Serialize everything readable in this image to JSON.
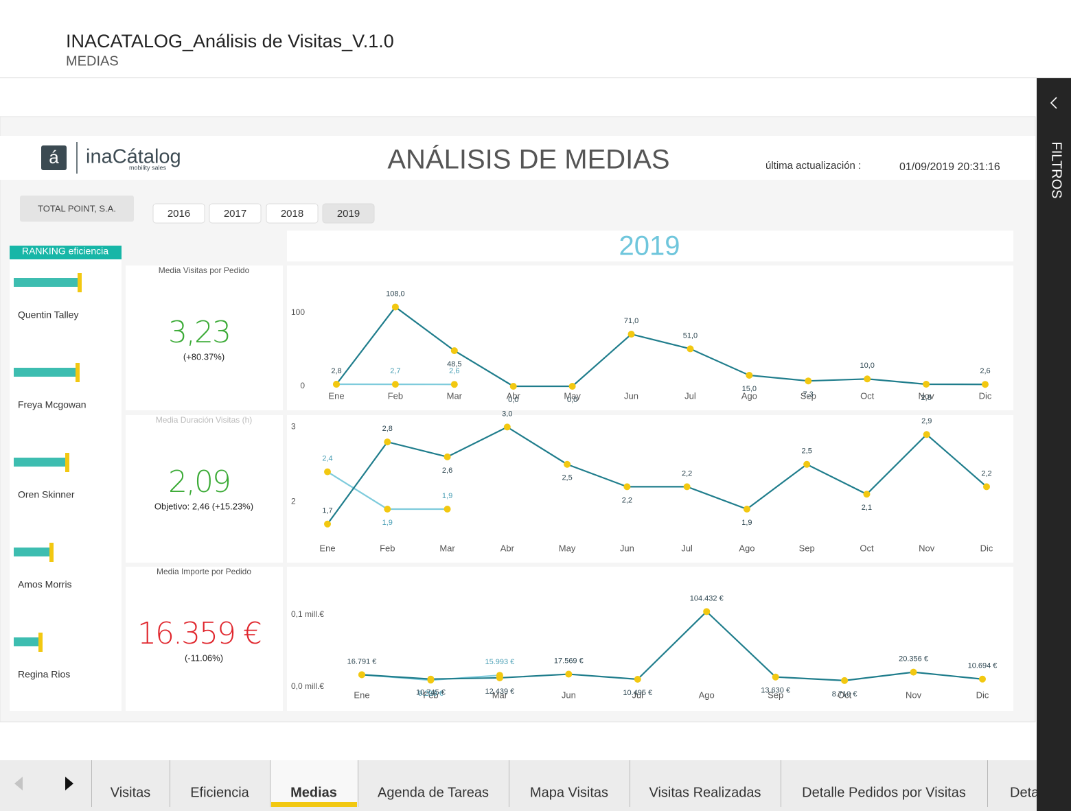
{
  "header": {
    "title": "INACATALOG_Análisis de Visitas_V.1.0",
    "subtitle": "MEDIAS"
  },
  "report": {
    "logo_letter": "á",
    "brand": "inaCátalog",
    "brand_tagline": "mobility sales",
    "title": "ANÁLISIS DE MEDIAS",
    "update_label": "última actualización :",
    "update_value": "01/09/2019 20:31:16",
    "client_button": "TOTAL POINT, S.A.",
    "years": [
      "2016",
      "2017",
      "2018",
      "2019"
    ],
    "selected_year": "2019",
    "chart_header": "2019"
  },
  "ranking": {
    "title": "RANKING eficiencia",
    "color": "#3dbdb0",
    "cap_color": "#f2c811",
    "items": [
      {
        "name": "Quentin Talley",
        "value": 93
      },
      {
        "name": "Freya Mcgowan",
        "value": 90
      },
      {
        "name": "Oren Skinner",
        "value": 75
      },
      {
        "name": "Amos Morris",
        "value": 52
      },
      {
        "name": "Regina Rios",
        "value": 36
      }
    ]
  },
  "kpis": [
    {
      "title": "Media Visitas por Pedido",
      "value": "3,23",
      "note": "(+80.37%)",
      "color": "#3aaa35"
    },
    {
      "title": "Media Duración Visitas (h)",
      "value": "2,09",
      "note": "Objetivo: 2,46 (+15.23%)",
      "color": "#3aaa35"
    },
    {
      "title": "Media Importe por Pedido",
      "value": "16.359 €",
      "note": "(-11.06%)",
      "color": "#e0262d"
    }
  ],
  "tabs": [
    "Visitas",
    "Eficiencia",
    "Medias",
    "Agenda de Tareas",
    "Mapa Visitas",
    "Visitas Realizadas",
    "Detalle Pedidos por Visitas",
    "Deta"
  ],
  "active_tab": "Medias",
  "side_panel": "FILTROS",
  "chart_data": [
    {
      "type": "line",
      "categories": [
        "Ene",
        "Feb",
        "Mar",
        "Abr",
        "May",
        "Jun",
        "Jul",
        "Ago",
        "Sep",
        "Oct",
        "Nov",
        "Dic"
      ],
      "ylim": [
        0,
        120
      ],
      "yticks": [
        0,
        100
      ],
      "grid": false,
      "marker_color": "#f2c811",
      "series": [
        {
          "color": "#7ecbdc",
          "values": [
            2.8,
            2.7,
            2.6,
            null,
            null,
            null,
            null,
            null,
            null,
            null,
            null,
            null
          ],
          "value_labels": [
            null,
            "2,7",
            "2,6",
            null,
            null,
            null,
            null,
            null,
            null,
            null,
            null,
            null
          ]
        },
        {
          "color": "#1f7d8c",
          "values": [
            2.8,
            108.0,
            48.5,
            0.0,
            0.0,
            71.0,
            51.0,
            15.0,
            7.3,
            10.0,
            2.8,
            2.6
          ],
          "value_labels": [
            "2,8",
            "108,0",
            "48,5",
            "0,0",
            "0,0",
            "71,0",
            "51,0",
            "15,0",
            "7,3",
            "10,0",
            "2,8",
            "2,6"
          ]
        }
      ]
    },
    {
      "type": "line",
      "categories": [
        "Ene",
        "Feb",
        "Mar",
        "Abr",
        "May",
        "Jun",
        "Jul",
        "Ago",
        "Sep",
        "Oct",
        "Nov",
        "Dic"
      ],
      "ylim": [
        1.6,
        3.1
      ],
      "yticks": [
        2,
        3
      ],
      "grid": false,
      "marker_color": "#f2c811",
      "series": [
        {
          "color": "#7ecbdc",
          "values": [
            2.4,
            1.9,
            1.9,
            null,
            null,
            null,
            null,
            null,
            null,
            null,
            null,
            null
          ],
          "value_labels": [
            "2,4",
            "1,9",
            "1,9",
            null,
            null,
            null,
            null,
            null,
            null,
            null,
            null,
            null
          ]
        },
        {
          "color": "#1f7d8c",
          "values": [
            1.7,
            2.8,
            2.6,
            3.0,
            2.5,
            2.2,
            2.2,
            1.9,
            2.5,
            2.1,
            2.9,
            2.2
          ],
          "value_labels": [
            "1,7",
            "2,8",
            "2,6",
            "3,0",
            "2,5",
            "2,2",
            "2,2",
            "1,9",
            "2,5",
            "2,1",
            "2,9",
            "2,2"
          ]
        }
      ]
    },
    {
      "type": "line",
      "categories": [
        "Ene",
        "Feb",
        "Mar",
        "Jun",
        "Jul",
        "Ago",
        "Sep",
        "Oct",
        "Nov",
        "Dic"
      ],
      "ylim": [
        -5000,
        115000
      ],
      "yticks": [
        {
          "value": 0,
          "label": "0,0 mill.€"
        },
        {
          "value": 100000,
          "label": "0,1 mill.€"
        }
      ],
      "grid": false,
      "marker_color": "#f2c811",
      "series": [
        {
          "color": "#7ecbdc",
          "values": [
            16791,
            9299,
            15993,
            null,
            null,
            null,
            null,
            null,
            null,
            null
          ],
          "value_labels": [
            null,
            "9.299 €",
            "15.993 €",
            null,
            null,
            null,
            null,
            null,
            null,
            null
          ]
        },
        {
          "color": "#1f7d8c",
          "values": [
            16791,
            10745,
            12439,
            17569,
            10495,
            104432,
            13630,
            8710,
            20356,
            10694
          ],
          "value_labels": [
            "16.791 €",
            "10.745 €",
            "12.439 €",
            "17.569 €",
            "10.495 €",
            "104.432 €",
            "13.630 €",
            "8.710 €",
            "20.356 €",
            "10.694 €"
          ]
        }
      ]
    }
  ]
}
